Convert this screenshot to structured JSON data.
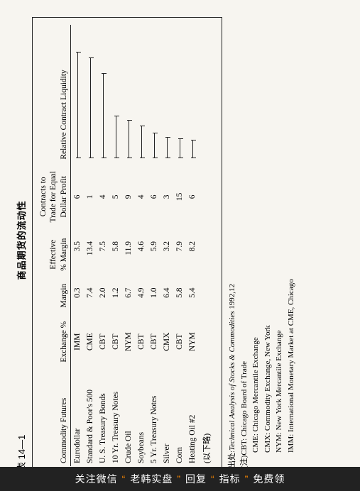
{
  "table_label": "表 14—1",
  "title": "商品期货的流动性",
  "columns": {
    "c1": "Commodity Futures",
    "c2": "Exchange %",
    "c3": "Margin",
    "c4": "Effective\n% Margin",
    "c5": "Contracts to\nTrade for Equal\nDollar Profit",
    "c6": "Relative Contract Liquidity"
  },
  "rows": [
    {
      "name": "Eurodollar",
      "ex": "IMM",
      "margin": "0.3",
      "eff": "3.5",
      "cts": "6",
      "bar": 150
    },
    {
      "name": "Standard & Poor's 500",
      "ex": "CME",
      "margin": "7.4",
      "eff": "13.4",
      "cts": "1",
      "bar": 142
    },
    {
      "name": "U. S. Treasury Bonds",
      "ex": "CBT",
      "margin": "2.0",
      "eff": "7.5",
      "cts": "4",
      "bar": 120
    },
    {
      "name": "10 Yr. Treasury Notes",
      "ex": "CBT",
      "margin": "1.2",
      "eff": "5.8",
      "cts": "5",
      "bar": 60
    },
    {
      "name": "Crude Oil",
      "ex": "NYM",
      "margin": "6.7",
      "eff": "11.9",
      "cts": "9",
      "bar": 54
    },
    {
      "name": "Soybeans",
      "ex": "CBT",
      "margin": "4.9",
      "eff": "4.6",
      "cts": "4",
      "bar": 46
    },
    {
      "name": "5 Yr. Treasury Notes",
      "ex": "CBT",
      "margin": "1.0",
      "eff": "5.9",
      "cts": "6",
      "bar": 36
    },
    {
      "name": "Silver",
      "ex": "CMX",
      "margin": "6.4",
      "eff": "3.2",
      "cts": "3",
      "bar": 30
    },
    {
      "name": "Corn",
      "ex": "CBT",
      "margin": "5.8",
      "eff": "7.9",
      "cts": "15",
      "bar": 28
    },
    {
      "name": "Heating Oil #2",
      "ex": "NYM",
      "margin": "5.4",
      "eff": "8.2",
      "cts": "6",
      "bar": 26
    }
  ],
  "omitted": "(以下略)",
  "source": {
    "label": "出处:",
    "title": "Technical Analysis of Stocks & Commodities",
    "rest": " 1992,12"
  },
  "note_label": "(注)",
  "notes": [
    "CBT: Chicago Board of Trade",
    "CME: Chicago Mercantile Exchange",
    "CMX: Commodity Exchange, New York",
    "NYM: New York Mercantile Exchange",
    "IMM: International Monetary Market at CME, Chicago"
  ],
  "banner": {
    "pre": "关注微信",
    "q1": "“",
    "mid": "老韩实盘",
    "q2": "”",
    "mid2": "回复",
    "q3": "“",
    "mid3": "指标",
    "q4": "”",
    "post": "免费领"
  }
}
